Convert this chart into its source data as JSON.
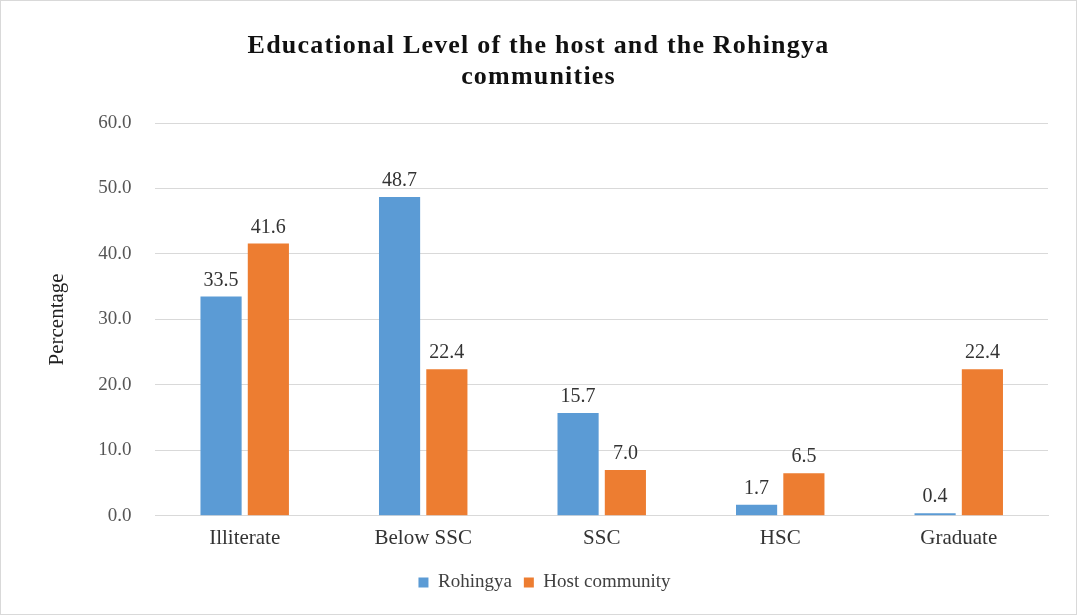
{
  "chart_data": {
    "type": "bar",
    "title": "Educational Level of the host and the Rohingya communities",
    "ylabel": "Percentage",
    "categories": [
      "Illiterate",
      "Below SSC",
      "SSC",
      "HSC",
      "Graduate"
    ],
    "series": [
      {
        "name": "Rohingya",
        "color": "#5b9bd5",
        "values": [
          33.5,
          48.7,
          15.7,
          1.7,
          0.4
        ],
        "value_labels": [
          "33.5",
          "48.7",
          "15.7",
          "1.7",
          "0.4"
        ]
      },
      {
        "name": "Host community",
        "color": "#ed7d31",
        "values": [
          41.6,
          22.4,
          7.0,
          6.5,
          22.4
        ],
        "value_labels": [
          "41.6",
          "22.4",
          "7.0",
          "6.5",
          "22.4"
        ]
      }
    ],
    "ylim": [
      0,
      60
    ],
    "yticks": [
      {
        "value": 0,
        "label": "0.0"
      },
      {
        "value": 10,
        "label": "10.0"
      },
      {
        "value": 20,
        "label": "20.0"
      },
      {
        "value": 30,
        "label": "30.0"
      },
      {
        "value": 40,
        "label": "40.0"
      },
      {
        "value": 50,
        "label": "50.0"
      },
      {
        "value": 60,
        "label": "60.0"
      }
    ],
    "grid": "y",
    "legend": "bottom"
  }
}
